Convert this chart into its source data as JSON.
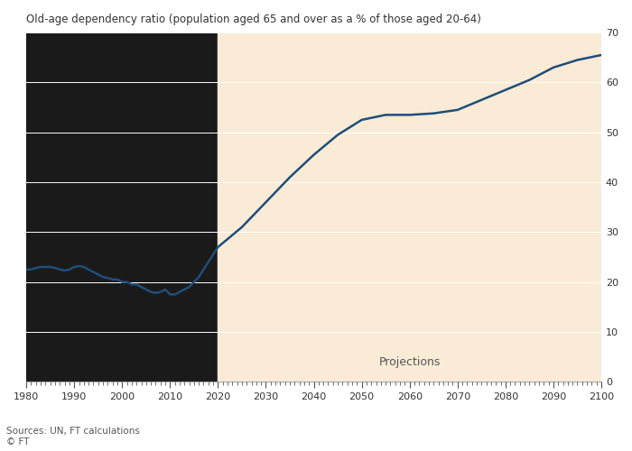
{
  "title": "Old-age dependency ratio (population aged 65 and over as a % of those aged 20-64)",
  "source_text": "Sources: UN, FT calculations\n© FT",
  "projection_label": "Projections",
  "projection_start": 2020,
  "x_start": 1980,
  "x_end": 2100,
  "ylim": [
    0,
    70
  ],
  "yticks": [
    0,
    10,
    20,
    30,
    40,
    50,
    60,
    70
  ],
  "xticks": [
    1980,
    1990,
    2000,
    2010,
    2020,
    2030,
    2040,
    2050,
    2060,
    2070,
    2080,
    2090,
    2100
  ],
  "line_color": "#1f4e79",
  "projection_bg": "#faebd7",
  "historical_bg": "#1a1a1a",
  "background_color": "#ffffff",
  "years": [
    1980,
    1981,
    1982,
    1983,
    1984,
    1985,
    1986,
    1987,
    1988,
    1989,
    1990,
    1991,
    1992,
    1993,
    1994,
    1995,
    1996,
    1997,
    1998,
    1999,
    2000,
    2001,
    2002,
    2003,
    2004,
    2005,
    2006,
    2007,
    2008,
    2009,
    2010,
    2011,
    2012,
    2013,
    2014,
    2015,
    2016,
    2017,
    2018,
    2019,
    2020,
    2025,
    2030,
    2035,
    2040,
    2045,
    2050,
    2055,
    2060,
    2065,
    2070,
    2075,
    2080,
    2085,
    2090,
    2095,
    2100
  ],
  "values": [
    22.5,
    22.5,
    22.8,
    23.0,
    23.0,
    23.0,
    22.8,
    22.5,
    22.3,
    22.5,
    23.0,
    23.2,
    23.0,
    22.5,
    22.0,
    21.5,
    21.0,
    20.8,
    20.5,
    20.5,
    20.0,
    20.0,
    19.5,
    19.5,
    19.0,
    18.5,
    18.0,
    17.8,
    18.0,
    18.5,
    17.5,
    17.5,
    18.0,
    18.5,
    19.0,
    20.0,
    21.0,
    22.5,
    24.0,
    25.5,
    27.0,
    31.0,
    36.0,
    41.0,
    45.5,
    49.5,
    52.5,
    53.5,
    53.5,
    53.8,
    54.5,
    56.5,
    58.5,
    60.5,
    63.0,
    64.5,
    65.5
  ]
}
